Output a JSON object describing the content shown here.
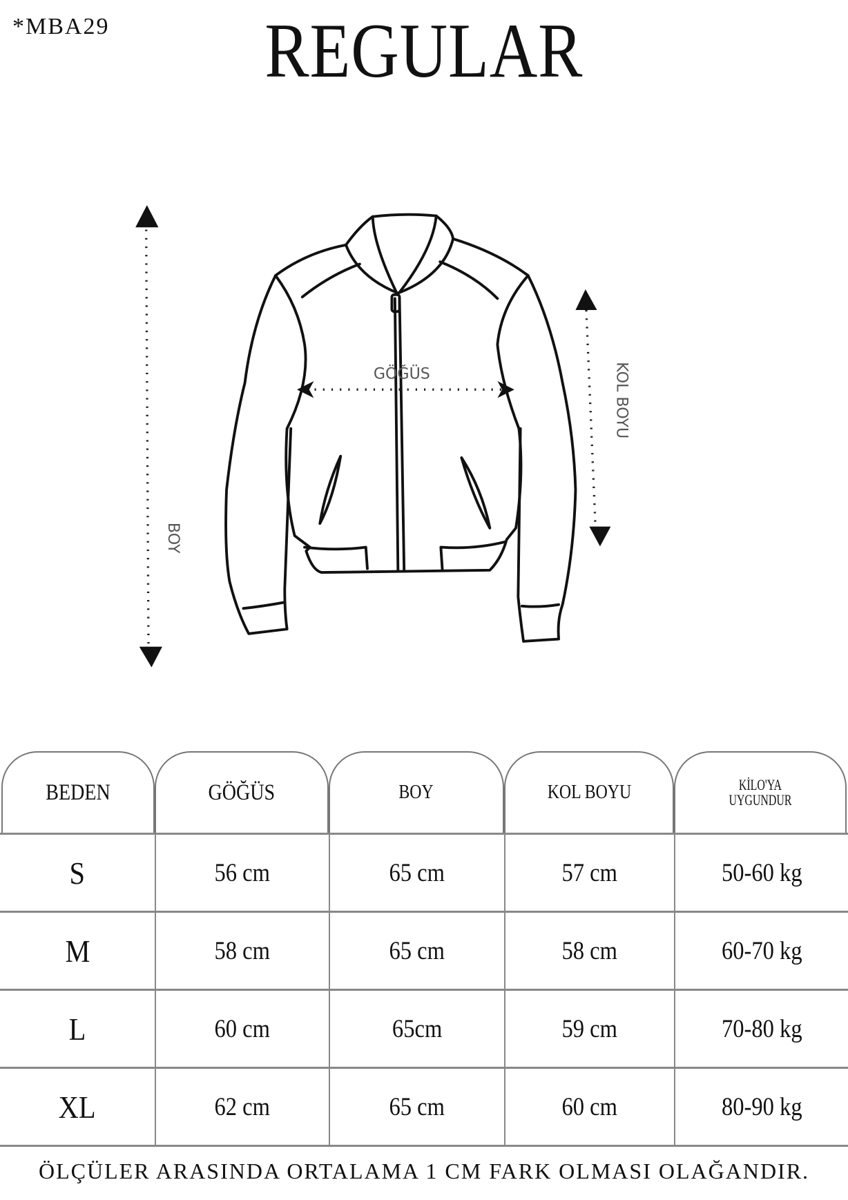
{
  "product_code": "*MBA29",
  "title": "REGULAR",
  "diagram": {
    "chest_label": "GÖĞÜS",
    "sleeve_label": "KOL BOYU",
    "length_label": "BOY"
  },
  "table": {
    "headers": [
      "BEDEN",
      "GÖĞÜS",
      "BOY",
      "KOL BOYU",
      "KİLO'YA UYGUNDUR"
    ],
    "header_kilo_line1": "KİLO'YA",
    "header_kilo_line2": "UYGUNDUR",
    "rows": [
      {
        "size": "S",
        "chest": "56 cm",
        "length": "65 cm",
        "sleeve": "57  cm",
        "weight": "50-60 kg"
      },
      {
        "size": "M",
        "chest": "58 cm",
        "length": "65 cm",
        "sleeve": "58 cm",
        "weight": "60-70 kg"
      },
      {
        "size": "L",
        "chest": "60 cm",
        "length": "65cm",
        "sleeve": "59 cm",
        "weight": "70-80 kg"
      },
      {
        "size": "XL",
        "chest": "62 cm",
        "length": "65 cm",
        "sleeve": "60 cm",
        "weight": "80-90 kg"
      }
    ]
  },
  "footer_note": "ÖLÇÜLER ARASINDA ORTALAMA 1 CM FARK OLMASI OLAĞANDIR."
}
